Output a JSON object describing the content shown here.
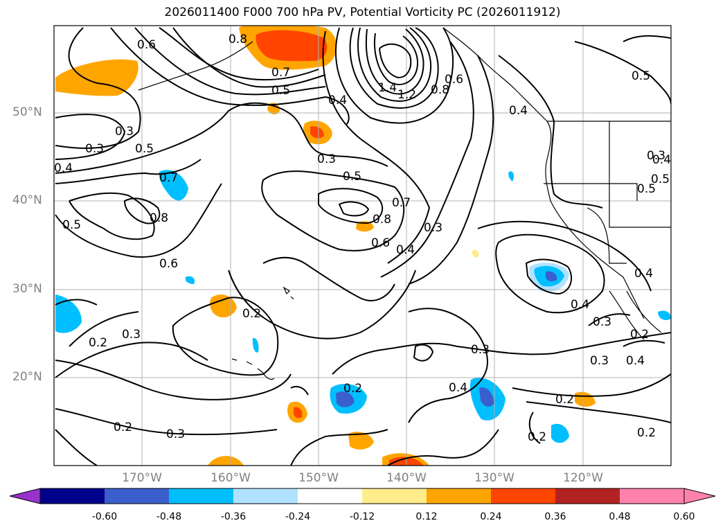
{
  "title": "2026011400 F000 700 hPa PV, Potential Vorticity PC (2026011912)",
  "axes": {
    "lat_labels": [
      "50°N",
      "40°N",
      "30°N",
      "20°N"
    ],
    "lon_labels": [
      "170°W",
      "160°W",
      "150°W",
      "140°W",
      "130°W",
      "120°W"
    ]
  },
  "contour_labels": [
    "0.6",
    "0.8",
    "0.7",
    "0.5",
    "0.4",
    "1.4",
    "1.2",
    "0.8",
    "0.6",
    "0.4",
    "0.5",
    "0.3",
    "0.3",
    "0.5",
    "0.4",
    "0.3",
    "0.5",
    "0.7",
    "0.8",
    "0.5",
    "0.8",
    "0.7",
    "0.6",
    "0.6",
    "0.4",
    "0.3",
    "0.5",
    "0.4",
    "0.2",
    "0.3",
    "0.2",
    "0.3",
    "0.3",
    "0.4",
    "0.4",
    "0.3",
    "0.2",
    "0.3",
    "0.4",
    "0.2",
    "0.2",
    "0.3",
    "0.2",
    "0.2",
    "0.2",
    "0.5",
    "0.4"
  ],
  "colorbar": {
    "ticks": [
      "-0.60",
      "-0.48",
      "-0.36",
      "-0.24",
      "-0.12",
      "0.12",
      "0.24",
      "0.36",
      "0.48",
      "0.60"
    ],
    "colors": [
      "#9932cc",
      "#00008b",
      "#3a5fcd",
      "#00bfff",
      "#b0e2ff",
      "#ffffff",
      "#ffec8b",
      "#ffa500",
      "#ff4500",
      "#b22222",
      "#ff82ab",
      "#ff82ab"
    ]
  }
}
